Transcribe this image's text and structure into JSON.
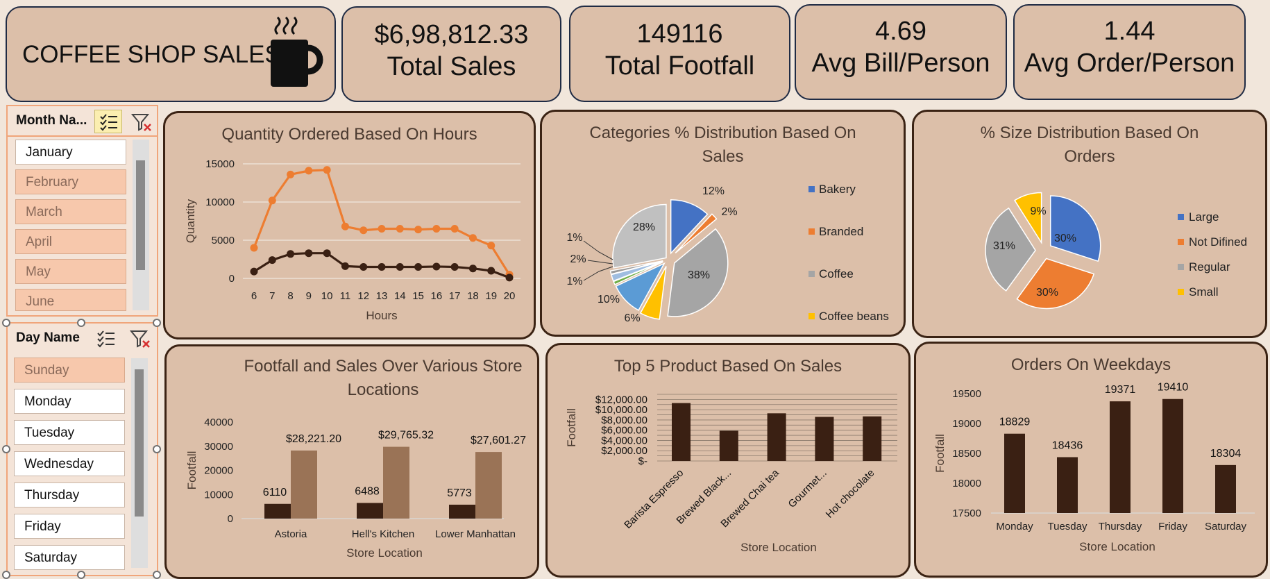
{
  "header": {
    "title": "COFFEE SHOP SALES"
  },
  "kpis": [
    {
      "value": "$6,98,812.33",
      "label": "Total Sales"
    },
    {
      "value": "149116",
      "label": "Total Footfall"
    },
    {
      "value": "4.69",
      "label": "Avg Bill/Person"
    },
    {
      "value": "1.44",
      "label": "Avg Order/Person"
    }
  ],
  "month_slicer": {
    "title": "Month Na...",
    "items": [
      {
        "label": "January",
        "selected": true
      },
      {
        "label": "February",
        "selected": false
      },
      {
        "label": "March",
        "selected": false
      },
      {
        "label": "April",
        "selected": false
      },
      {
        "label": "May",
        "selected": false
      },
      {
        "label": "June",
        "selected": false
      }
    ]
  },
  "day_slicer": {
    "title": "Day Name",
    "items": [
      {
        "label": "Sunday",
        "selected": false
      },
      {
        "label": "Monday",
        "selected": true
      },
      {
        "label": "Tuesday",
        "selected": true
      },
      {
        "label": "Wednesday",
        "selected": true
      },
      {
        "label": "Thursday",
        "selected": true
      },
      {
        "label": "Friday",
        "selected": true
      },
      {
        "label": "Saturday",
        "selected": true
      }
    ]
  },
  "chart_data": [
    {
      "id": "hours",
      "type": "line",
      "title": "Quantity Ordered Based On Hours",
      "xlabel": "Hours",
      "ylabel": "Quantity",
      "ylim": [
        0,
        15000
      ],
      "yticks": [
        "15000",
        "10000",
        "5000",
        "0"
      ],
      "x": [
        "6",
        "7",
        "8",
        "9",
        "10",
        "11",
        "12",
        "13",
        "14",
        "15",
        "16",
        "17",
        "18",
        "19",
        "20"
      ],
      "series": [
        {
          "color": "#ed7d31",
          "values": [
            4000,
            10200,
            13600,
            14100,
            14200,
            6800,
            6300,
            6500,
            6500,
            6400,
            6500,
            6500,
            5300,
            4300,
            500
          ]
        },
        {
          "color": "#3a2013",
          "values": [
            900,
            2400,
            3200,
            3300,
            3300,
            1600,
            1500,
            1500,
            1500,
            1500,
            1550,
            1500,
            1300,
            1000,
            100
          ]
        }
      ],
      "grid": true
    },
    {
      "id": "categories",
      "type": "pie",
      "title": "Categories % Distribution Based On Sales",
      "slices": [
        {
          "label": "Bakery",
          "value": 12,
          "text": "12%",
          "color": "#4472c4"
        },
        {
          "label": "Branded",
          "value": 2,
          "text": "2%",
          "color": "#ed7d31"
        },
        {
          "label": "Coffee",
          "value": 38,
          "text": "38%",
          "color": "#a5a5a5"
        },
        {
          "label": "Coffee beans",
          "value": 6,
          "text": "6%",
          "color": "#ffc000"
        },
        {
          "label": "",
          "value": 10,
          "text": "10%",
          "color": "#5b9bd5"
        },
        {
          "label": "",
          "value": 1,
          "text": "1%",
          "color": "#70ad47"
        },
        {
          "label": "",
          "value": 2,
          "text": "2%",
          "color": "#9fbde0"
        },
        {
          "label": "",
          "value": 1,
          "text": "1%",
          "color": "#9b9b9b"
        },
        {
          "label": "",
          "value": 28,
          "text": "28%",
          "color": "#c0c0c0"
        }
      ],
      "legend": [
        "Bakery",
        "Branded",
        "Coffee",
        "Coffee beans"
      ],
      "legend_position": "right"
    },
    {
      "id": "size",
      "type": "pie",
      "title": "% Size Distribution Based On Orders",
      "slices": [
        {
          "label": "Large",
          "value": 30,
          "text": "30%",
          "color": "#4472c4"
        },
        {
          "label": "Not Difined",
          "value": 30,
          "text": "30%",
          "color": "#ed7d31"
        },
        {
          "label": "Regular",
          "value": 31,
          "text": "31%",
          "color": "#a5a5a5"
        },
        {
          "label": "Small",
          "value": 9,
          "text": "9%",
          "color": "#ffc000"
        }
      ],
      "legend_position": "right"
    },
    {
      "id": "footfall",
      "type": "bar",
      "title": "Footfall and Sales Over Various Store Locations",
      "xlabel": "Store Location",
      "ylabel": "Footfall",
      "ylim": [
        0,
        40000
      ],
      "yticks": [
        "40000",
        "30000",
        "20000",
        "10000",
        "0"
      ],
      "categories": [
        "Astoria",
        "Hell's Kitchen",
        "Lower Manhattan"
      ],
      "series": [
        {
          "color": "#3a2013",
          "values": [
            6110,
            6488,
            5773
          ],
          "labels": [
            "6110",
            "6488",
            "5773"
          ]
        },
        {
          "color": "#9a7356",
          "values": [
            28221.2,
            29765.32,
            27601.27
          ],
          "labels": [
            "$28,221.20",
            "$29,765.32",
            "$27,601.27"
          ]
        }
      ]
    },
    {
      "id": "top5",
      "type": "bar",
      "title": "Top 5 Product Based On Sales",
      "xlabel": "Store Location",
      "ylabel": "Footfall",
      "ylim": [
        0,
        13000
      ],
      "yticks": [
        "$12,000.00",
        "$10,000.00",
        "$8,000.00",
        "$6,000.00",
        "$4,000.00",
        "$2,000.00",
        "$-"
      ],
      "categories": [
        "Barista Espresso",
        "Brewed Black...",
        "Brewed Chai tea",
        "Gourmet...",
        "Hot chocolate"
      ],
      "values": [
        11300,
        5900,
        9300,
        8600,
        8700
      ]
    },
    {
      "id": "weekdays",
      "type": "bar",
      "title": "Orders On Weekdays",
      "xlabel": "Store Location",
      "ylabel": "Footfall",
      "ylim": [
        17500,
        19500
      ],
      "yticks": [
        "19500",
        "19000",
        "18500",
        "18000",
        "17500"
      ],
      "categories": [
        "Monday",
        "Tuesday",
        "Thursday",
        "Friday",
        "Saturday"
      ],
      "values": [
        18829,
        18436,
        19371,
        19410,
        18304
      ],
      "labels": [
        "18829",
        "18436",
        "19371",
        "19410",
        "18304"
      ]
    }
  ]
}
